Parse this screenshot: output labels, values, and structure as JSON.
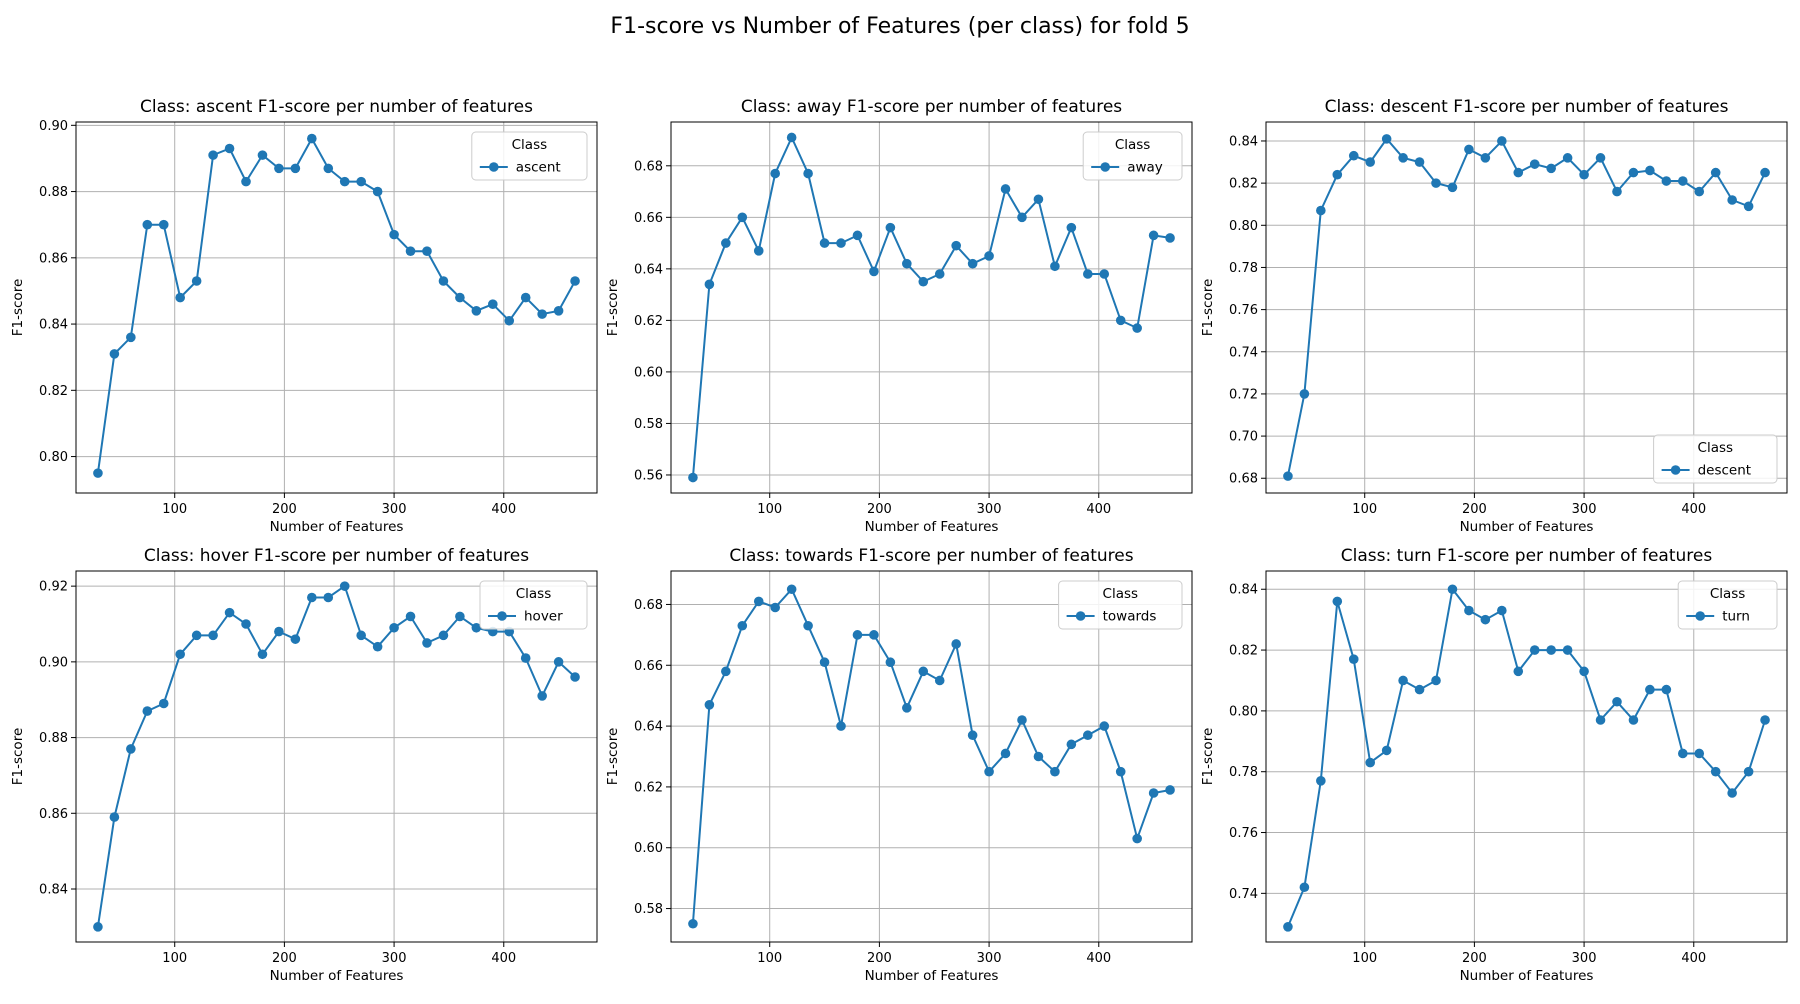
{
  "figure": {
    "title": "F1-score vs Number of Features (per class) for fold 5"
  },
  "style": {
    "line_color": "#1f77b4",
    "grid_color": "#b0b0b0"
  },
  "x_features": [
    30,
    45,
    60,
    75,
    90,
    105,
    120,
    135,
    150,
    165,
    180,
    195,
    210,
    225,
    240,
    255,
    270,
    285,
    300,
    315,
    330,
    345,
    360,
    375,
    390,
    405,
    420,
    435,
    450,
    465
  ],
  "chart_data": [
    {
      "type": "line",
      "title": "Class: ascent F1-score per number of features",
      "xlabel": "Number of Features",
      "ylabel": "F1-score",
      "xlim": [
        10,
        485
      ],
      "ylim": [
        0.789,
        0.901
      ],
      "xticks": [
        100,
        200,
        300,
        400
      ],
      "yticks": [
        0.8,
        0.82,
        0.84,
        0.86,
        0.88,
        0.9
      ],
      "ytick_labels": [
        "0.80",
        "0.82",
        "0.84",
        "0.86",
        "0.88",
        "0.90"
      ],
      "legend": {
        "title": "Class",
        "position": "top-right"
      },
      "grid": true,
      "series": [
        {
          "name": "ascent",
          "values": [
            0.795,
            0.831,
            0.836,
            0.87,
            0.87,
            0.848,
            0.853,
            0.891,
            0.893,
            0.883,
            0.891,
            0.887,
            0.887,
            0.896,
            0.887,
            0.883,
            0.883,
            0.88,
            0.867,
            0.862,
            0.862,
            0.853,
            0.848,
            0.844,
            0.846,
            0.841,
            0.848,
            0.843,
            0.844,
            0.853
          ]
        }
      ]
    },
    {
      "type": "line",
      "title": "Class: away F1-score per number of features",
      "xlabel": "Number of Features",
      "ylabel": "F1-score",
      "xlim": [
        10,
        485
      ],
      "ylim": [
        0.553,
        0.697
      ],
      "xticks": [
        100,
        200,
        300,
        400
      ],
      "yticks": [
        0.56,
        0.58,
        0.6,
        0.62,
        0.64,
        0.66,
        0.68
      ],
      "ytick_labels": [
        "0.56",
        "0.58",
        "0.60",
        "0.62",
        "0.64",
        "0.66",
        "0.68"
      ],
      "legend": {
        "title": "Class",
        "position": "top-right"
      },
      "grid": true,
      "series": [
        {
          "name": "away",
          "values": [
            0.559,
            0.634,
            0.65,
            0.66,
            0.647,
            0.677,
            0.691,
            0.677,
            0.65,
            0.65,
            0.653,
            0.639,
            0.656,
            0.642,
            0.635,
            0.638,
            0.649,
            0.642,
            0.645,
            0.671,
            0.66,
            0.667,
            0.641,
            0.656,
            0.638,
            0.638,
            0.62,
            0.617,
            0.653,
            0.652
          ]
        }
      ]
    },
    {
      "type": "line",
      "title": "Class: descent F1-score per number of features",
      "xlabel": "Number of Features",
      "ylabel": "F1-score",
      "xlim": [
        10,
        485
      ],
      "ylim": [
        0.673,
        0.849
      ],
      "xticks": [
        100,
        200,
        300,
        400
      ],
      "yticks": [
        0.68,
        0.7,
        0.72,
        0.74,
        0.76,
        0.78,
        0.8,
        0.82,
        0.84
      ],
      "ytick_labels": [
        "0.68",
        "0.70",
        "0.72",
        "0.74",
        "0.76",
        "0.78",
        "0.80",
        "0.82",
        "0.84"
      ],
      "legend": {
        "title": "Class",
        "position": "bottom-right"
      },
      "grid": true,
      "series": [
        {
          "name": "descent",
          "values": [
            0.681,
            0.72,
            0.807,
            0.824,
            0.833,
            0.83,
            0.841,
            0.832,
            0.83,
            0.82,
            0.818,
            0.836,
            0.832,
            0.84,
            0.825,
            0.829,
            0.827,
            0.832,
            0.824,
            0.832,
            0.816,
            0.825,
            0.826,
            0.821,
            0.821,
            0.816,
            0.825,
            0.812,
            0.809,
            0.825
          ]
        }
      ]
    },
    {
      "type": "line",
      "title": "Class: hover F1-score per number of features",
      "xlabel": "Number of Features",
      "ylabel": "F1-score",
      "xlim": [
        10,
        485
      ],
      "ylim": [
        0.826,
        0.924
      ],
      "xticks": [
        100,
        200,
        300,
        400
      ],
      "yticks": [
        0.84,
        0.86,
        0.88,
        0.9,
        0.92
      ],
      "ytick_labels": [
        "0.84",
        "0.86",
        "0.88",
        "0.90",
        "0.92"
      ],
      "legend": {
        "title": "Class",
        "position": "top-right"
      },
      "grid": true,
      "series": [
        {
          "name": "hover",
          "values": [
            0.83,
            0.859,
            0.877,
            0.887,
            0.889,
            0.902,
            0.907,
            0.907,
            0.913,
            0.91,
            0.902,
            0.908,
            0.906,
            0.917,
            0.917,
            0.92,
            0.907,
            0.904,
            0.909,
            0.912,
            0.905,
            0.907,
            0.912,
            0.909,
            0.908,
            0.908,
            0.901,
            0.891,
            0.9,
            0.896
          ]
        }
      ]
    },
    {
      "type": "line",
      "title": "Class: towards F1-score per number of features",
      "xlabel": "Number of Features",
      "ylabel": "F1-score",
      "xlim": [
        10,
        485
      ],
      "ylim": [
        0.569,
        0.691
      ],
      "xticks": [
        100,
        200,
        300,
        400
      ],
      "yticks": [
        0.58,
        0.6,
        0.62,
        0.64,
        0.66,
        0.68
      ],
      "ytick_labels": [
        "0.58",
        "0.60",
        "0.62",
        "0.64",
        "0.66",
        "0.68"
      ],
      "legend": {
        "title": "Class",
        "position": "top-right"
      },
      "grid": true,
      "series": [
        {
          "name": "towards",
          "values": [
            0.575,
            0.647,
            0.658,
            0.673,
            0.681,
            0.679,
            0.685,
            0.673,
            0.661,
            0.64,
            0.67,
            0.67,
            0.661,
            0.646,
            0.658,
            0.655,
            0.667,
            0.637,
            0.625,
            0.631,
            0.642,
            0.63,
            0.625,
            0.634,
            0.637,
            0.64,
            0.625,
            0.603,
            0.618,
            0.619
          ]
        }
      ]
    },
    {
      "type": "line",
      "title": "Class: turn F1-score per number of features",
      "xlabel": "Number of Features",
      "ylabel": "F1-score",
      "xlim": [
        10,
        485
      ],
      "ylim": [
        0.724,
        0.846
      ],
      "xticks": [
        100,
        200,
        300,
        400
      ],
      "yticks": [
        0.74,
        0.76,
        0.78,
        0.8,
        0.82,
        0.84
      ],
      "ytick_labels": [
        "0.74",
        "0.76",
        "0.78",
        "0.80",
        "0.82",
        "0.84"
      ],
      "legend": {
        "title": "Class",
        "position": "top-right"
      },
      "grid": true,
      "series": [
        {
          "name": "turn",
          "values": [
            0.729,
            0.742,
            0.777,
            0.836,
            0.817,
            0.783,
            0.787,
            0.81,
            0.807,
            0.81,
            0.84,
            0.833,
            0.83,
            0.833,
            0.813,
            0.82,
            0.82,
            0.82,
            0.813,
            0.797,
            0.803,
            0.797,
            0.807,
            0.807,
            0.786,
            0.786,
            0.78,
            0.773,
            0.78,
            0.797
          ]
        }
      ]
    }
  ]
}
